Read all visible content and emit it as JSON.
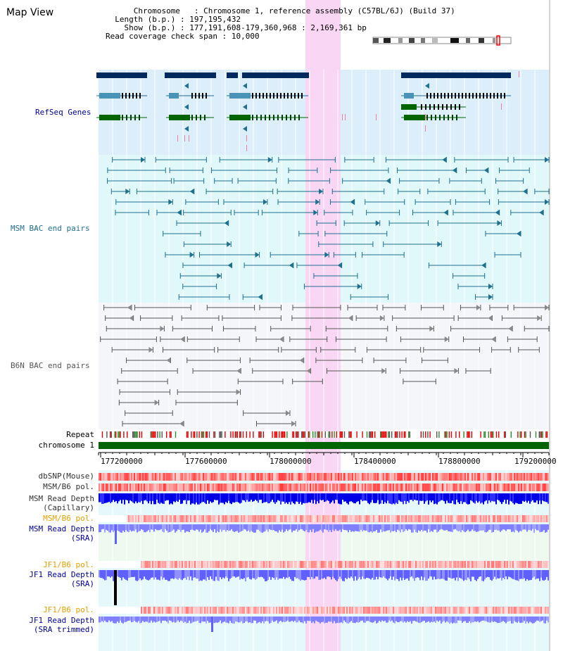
{
  "title": "Map View",
  "info": {
    "chromosome_key": "Chromosome",
    "chromosome_val": "Chromosome 1, reference assembly (C57BL/6J) (Build 37)",
    "length_key": "Length (b.p.)",
    "length_val": "197,195,432",
    "show_key": "Show (b.p.)",
    "show_val": "177,191,608-179,360,968 : 2,169,361 bp",
    "coverage_key": "Read coverage check span",
    "coverage_val": "10,000"
  },
  "colors": {
    "refseq_bg": "#dbeefa",
    "msm_bg": "#e0f8fa",
    "b6n_bg": "#f4f6fa",
    "highlight": "#f9d6f4",
    "refseq_dark": "#002a5e",
    "refseq_mid": "#4a93b8",
    "refseq_green": "#006400",
    "msm_pair": "#1f6f8f",
    "b6n_pair": "#555555",
    "chromosome_bar": "#006400",
    "heat_red": "#ff4444",
    "depth_blue": "#0000e6",
    "depth_light": "#8080ff",
    "label_blue": "#000099",
    "label_orange": "#e6a000"
  },
  "tracks": {
    "refseq": "RefSeq Genes",
    "msm_bac": "MSM BAC end pairs",
    "b6n_bac": "B6N BAC end pairs",
    "repeat": "Repeat",
    "chromosome": "chromosome 1",
    "dbsnp": "dbSNP(Mouse)",
    "msm_b6_pol_1": "MSM/B6 pol.",
    "msm_depth_cap_1": "MSM Read Depth",
    "msm_depth_cap_2": "(Capillary)",
    "msm_b6_pol_2": "MSM/B6 pol.",
    "msm_depth_sra_1": "MSM Read Depth",
    "msm_depth_sra_2": "(SRA)",
    "jf1_b6_pol_1": "JF1/B6 pol.",
    "jf1_depth_sra_1": "JF1 Read Depth",
    "jf1_depth_sra_2": "(SRA)",
    "jf1_b6_pol_2": "JF1/B6 pol.",
    "jf1_depth_trim_1": "JF1 Read Depth",
    "jf1_depth_trim_2": "(SRA trimmed)"
  },
  "axis": {
    "ticks": [
      "177200000",
      "177600000",
      "178000000",
      "178400000",
      "178800000",
      "179200000"
    ]
  }
}
